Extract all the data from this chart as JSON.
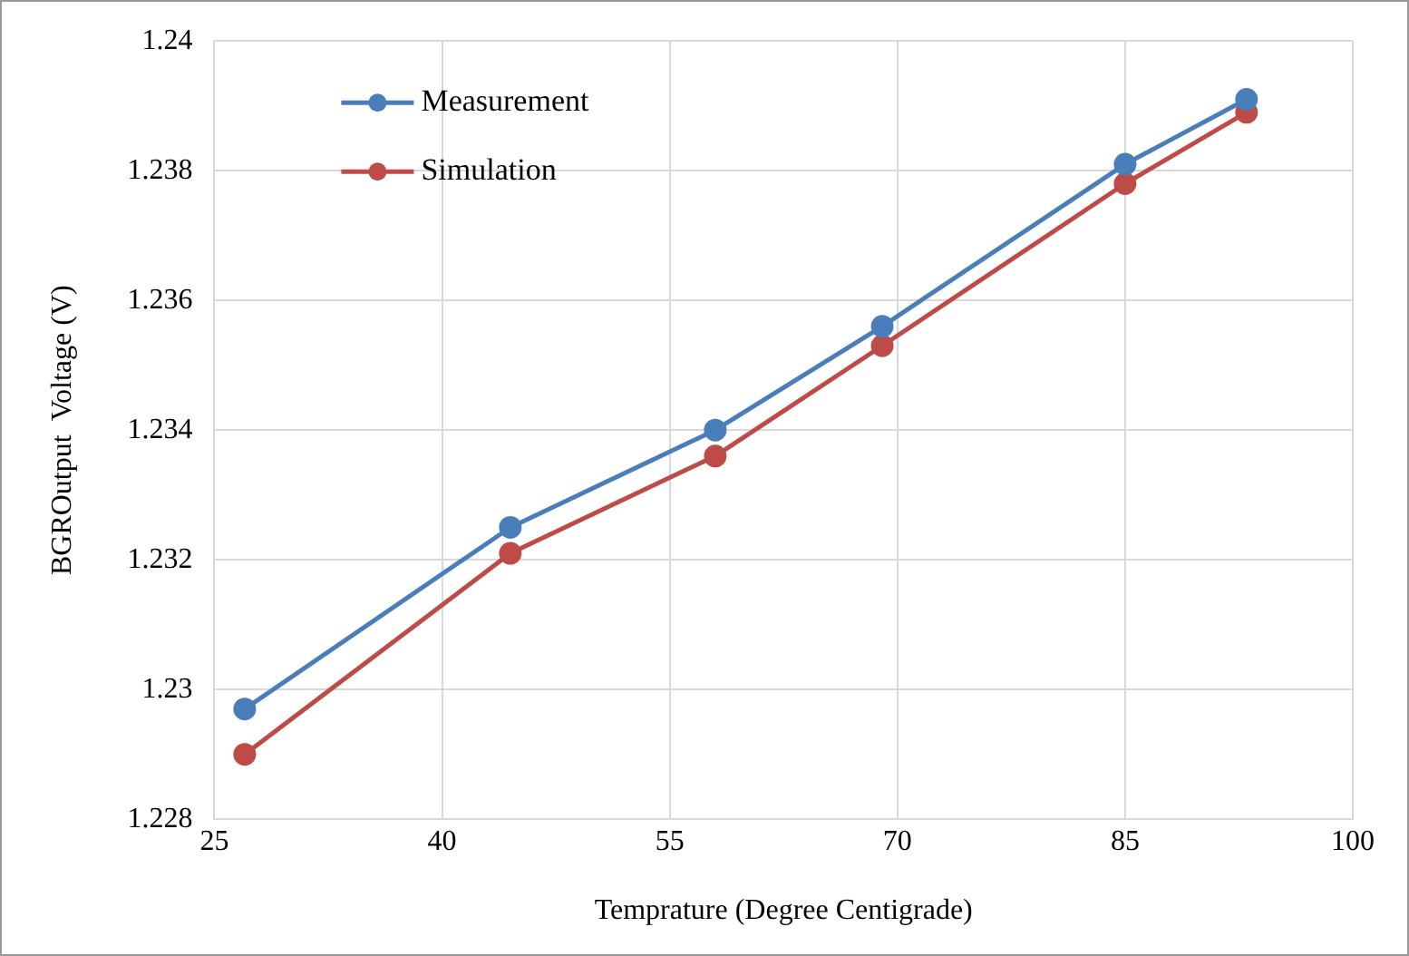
{
  "chart_data": {
    "type": "line",
    "xlabel": "Temprature (Degree Centigrade)",
    "ylabel": "BGROutput  Voltage (V)",
    "x": [
      27,
      44.5,
      58,
      69,
      85,
      93
    ],
    "series": [
      {
        "name": "Measurement",
        "color": "#4a7ebb",
        "values": [
          1.2297,
          1.2325,
          1.234,
          1.2356,
          1.2381,
          1.2391
        ]
      },
      {
        "name": "Simulation",
        "color": "#be4b48",
        "values": [
          1.229,
          1.2321,
          1.2336,
          1.2353,
          1.2378,
          1.2389
        ]
      }
    ],
    "xlim": [
      25,
      100
    ],
    "xticks": [
      25,
      40,
      55,
      70,
      85,
      100
    ],
    "ylim": [
      1.228,
      1.24
    ],
    "yticks": [
      1.228,
      1.23,
      1.232,
      1.234,
      1.236,
      1.238,
      1.24
    ],
    "grid": true,
    "legend": "top left",
    "marker": "circle",
    "line_style": "solid"
  }
}
